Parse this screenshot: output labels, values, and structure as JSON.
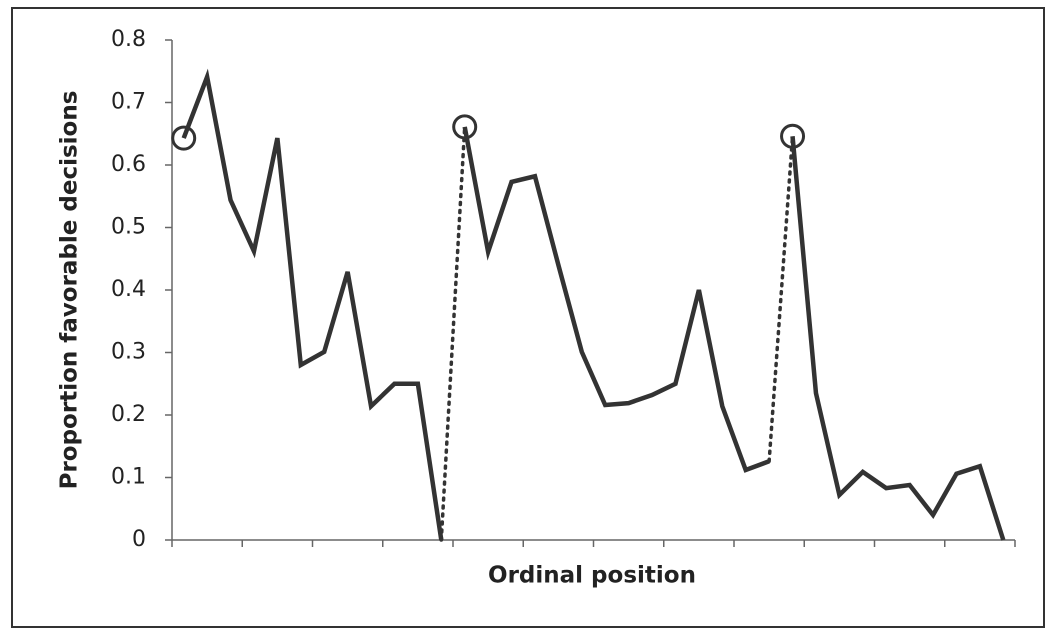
{
  "chart_data": {
    "type": "line",
    "x_label": "Ordinal position",
    "y_label": "Proportion favorable decisions",
    "color": "#333333",
    "connector_style": "dotted",
    "start_marker": "circle",
    "xlim": [
      0.5,
      36.5
    ],
    "xticks": [
      0.5,
      3.5,
      6.5,
      9.5,
      12.5,
      15.5,
      18.5,
      21.5,
      24.5,
      27.5,
      30.5,
      33.5,
      36.5
    ],
    "ylim": [
      0,
      0.8
    ],
    "yticks": [
      0,
      0.1,
      0.2,
      0.3,
      0.4,
      0.5,
      0.6,
      0.7,
      0.8
    ],
    "series": [
      {
        "x": [
          1,
          2,
          3,
          4,
          5,
          6,
          7,
          8,
          9,
          10,
          11,
          12
        ],
        "values": [
          0.643,
          0.741,
          0.544,
          0.462,
          0.643,
          0.28,
          0.301,
          0.429,
          0.214,
          0.25,
          0.25,
          0
        ]
      },
      {
        "x": [
          13,
          14,
          15,
          16,
          17,
          18,
          19,
          20,
          21,
          22,
          23,
          24,
          25,
          26
        ],
        "values": [
          0.661,
          0.461,
          0.573,
          0.582,
          0.44,
          0.301,
          0.216,
          0.219,
          0.232,
          0.25,
          0.4,
          0.214,
          0.112,
          0.126
        ]
      },
      {
        "x": [
          27,
          28,
          29,
          30,
          31,
          32,
          33,
          34,
          35,
          36
        ],
        "values": [
          0.646,
          0.235,
          0.072,
          0.109,
          0.083,
          0.088,
          0.04,
          0.106,
          0.118,
          0
        ]
      }
    ]
  }
}
